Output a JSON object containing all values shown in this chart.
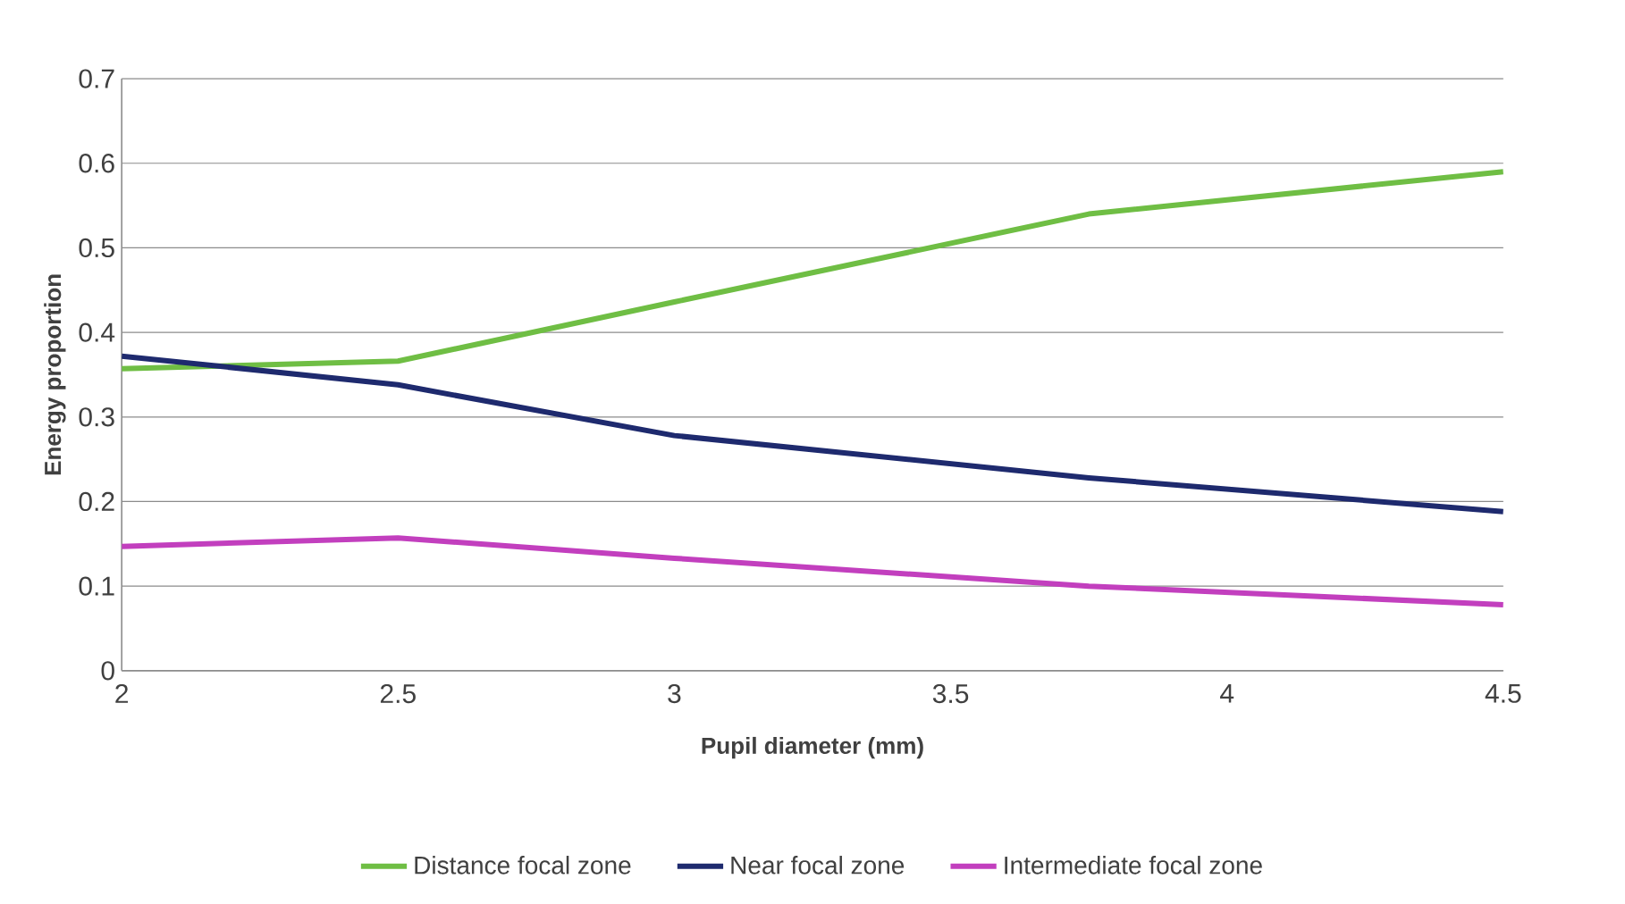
{
  "chart_data": {
    "type": "line",
    "xlabel": "Pupil diameter (mm)",
    "ylabel": "Energy proportion",
    "x": [
      2,
      2.5,
      3,
      3.75,
      4.5
    ],
    "series": [
      {
        "name": "Distance focal zone",
        "color": "#6fbe44",
        "values": [
          0.357,
          0.366,
          0.436,
          0.54,
          0.59
        ]
      },
      {
        "name": "Near focal zone",
        "color": "#1e2a6e",
        "values": [
          0.372,
          0.338,
          0.278,
          0.228,
          0.188
        ]
      },
      {
        "name": "Intermediate focal zone",
        "color": "#c23fbe",
        "values": [
          0.147,
          0.157,
          0.133,
          0.1,
          0.078
        ]
      }
    ],
    "xlim": [
      2,
      4.5
    ],
    "xticks": [
      2,
      2.5,
      3,
      3.5,
      4,
      4.5
    ],
    "ylim": [
      0,
      0.7
    ],
    "yticks": [
      0,
      0.1,
      0.2,
      0.3,
      0.4,
      0.5,
      0.6,
      0.7
    ],
    "grid": "y",
    "legend": "bottom",
    "marker": "none",
    "line_style": "solid"
  }
}
